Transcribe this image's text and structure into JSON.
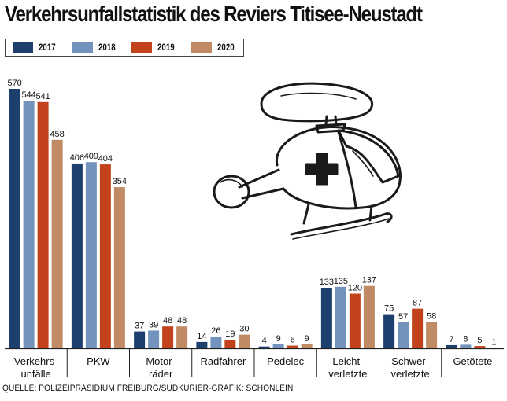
{
  "chart_data": {
    "type": "bar",
    "title": "Verkehrsunfallstatistik des Reviers Titisee-Neustadt",
    "source": "QUELLE: POLIZEIPRÄSIDIUM FREIBURG/SÜDKURIER-GRAFIK: SCHÖNLEIN",
    "categories": [
      [
        "Verkehrs-",
        "unfälle"
      ],
      [
        "PKW"
      ],
      [
        "Motor-",
        "räder"
      ],
      [
        "Radfahrer"
      ],
      [
        "Pedelec"
      ],
      [
        "Leicht-",
        "verletzte"
      ],
      [
        "Schwer-",
        "verletzte"
      ],
      [
        "Getötete"
      ]
    ],
    "series": [
      {
        "name": "2017",
        "color": "#1d3f6e",
        "values": [
          570,
          406,
          37,
          14,
          4,
          133,
          75,
          7
        ]
      },
      {
        "name": "2018",
        "color": "#7393bd",
        "values": [
          544,
          409,
          39,
          26,
          9,
          135,
          57,
          8
        ]
      },
      {
        "name": "2019",
        "color": "#c2431b",
        "values": [
          541,
          404,
          48,
          19,
          6,
          120,
          87,
          5
        ]
      },
      {
        "name": "2020",
        "color": "#c08a64",
        "values": [
          458,
          354,
          48,
          30,
          9,
          137,
          58,
          1
        ]
      }
    ],
    "ylim": [
      0,
      570
    ],
    "grid": false,
    "legend_position": "top-left",
    "data_labels": true
  },
  "illustration": {
    "icon": "helicopter-icon"
  }
}
